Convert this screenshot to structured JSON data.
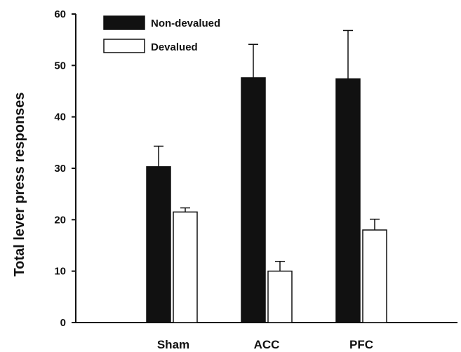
{
  "chart_data": {
    "type": "bar",
    "title": "",
    "xlabel": "",
    "ylabel": "Total lever press responses",
    "ylim": [
      0,
      60
    ],
    "yticks": [
      0,
      10,
      20,
      30,
      40,
      50,
      60
    ],
    "categories": [
      "Sham",
      "ACC",
      "PFC"
    ],
    "series": [
      {
        "name": "Non-devalued",
        "color": "#111111",
        "values": [
          30.3,
          47.6,
          47.4
        ],
        "errors": [
          4.0,
          6.5,
          9.4
        ]
      },
      {
        "name": "Devalued",
        "color": "#ffffff",
        "values": [
          21.5,
          10.0,
          18.0
        ],
        "errors": [
          0.8,
          1.9,
          2.1
        ]
      }
    ],
    "legend_position": "top-left",
    "grid": false,
    "error_bars": "upper"
  }
}
